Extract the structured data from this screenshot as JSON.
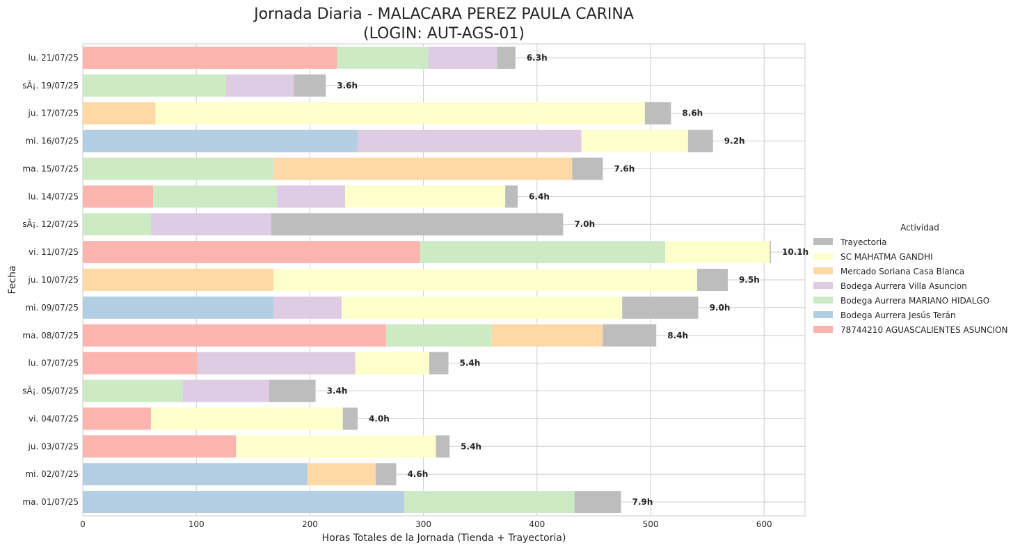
{
  "chart_data": {
    "type": "bar",
    "orientation": "horizontal",
    "stacked": true,
    "title_line1": "Jornada Diaria - MALACARA PEREZ PAULA CARINA",
    "title_line2": "(LOGIN: AUT-AGS-01)",
    "xlabel": "Horas Totales de la Jornada (Tienda + Trayectoria)",
    "ylabel": "Fecha",
    "xlim": [
      0,
      636
    ],
    "xticks": [
      "0",
      "100",
      "200",
      "300",
      "400",
      "500",
      "600"
    ],
    "grid": true,
    "legend_title": "Actividad",
    "legend_position": "right",
    "categories": [
      "lu. 21/07/25",
      "sÃ¡. 19/07/25",
      "ju. 17/07/25",
      "mi. 16/07/25",
      "ma. 15/07/25",
      "lu. 14/07/25",
      "sÃ¡. 12/07/25",
      "vi. 11/07/25",
      "ju. 10/07/25",
      "mi. 09/07/25",
      "ma. 08/07/25",
      "lu. 07/07/25",
      "sÃ¡. 05/07/25",
      "vi. 04/07/25",
      "ju. 03/07/25",
      "mi. 02/07/25",
      "ma. 01/07/25"
    ],
    "series": [
      {
        "name": "78744210 AGUASCALIENTES ASUNCION",
        "color": "#fbb4ae",
        "values": [
          224,
          0,
          0,
          0,
          0,
          62,
          0,
          297,
          0,
          0,
          267,
          101,
          0,
          60,
          135,
          0,
          0
        ]
      },
      {
        "name": "Bodega Aurrera Jesús Terán",
        "color": "#b3cde3",
        "values": [
          0,
          0,
          0,
          242,
          0,
          0,
          0,
          0,
          0,
          168,
          0,
          0,
          0,
          0,
          0,
          198,
          283
        ]
      },
      {
        "name": "Bodega Aurrera MARIANO HIDALGO",
        "color": "#ccebc5",
        "values": [
          80,
          126,
          0,
          0,
          168,
          109,
          60,
          216,
          0,
          0,
          93,
          0,
          88,
          0,
          0,
          0,
          150
        ]
      },
      {
        "name": "Bodega Aurrera Villa Asuncion",
        "color": "#decbe4",
        "values": [
          61,
          60,
          0,
          197,
          0,
          60,
          106,
          0,
          0,
          60,
          0,
          139,
          76,
          0,
          0,
          0,
          0
        ]
      },
      {
        "name": "Mercado Soriana Casa Blanca",
        "color": "#fed9a6",
        "values": [
          0,
          0,
          64,
          0,
          263,
          0,
          0,
          0,
          168,
          0,
          98,
          0,
          0,
          0,
          0,
          60,
          0
        ]
      },
      {
        "name": "SC MAHATMA GANDHI",
        "color": "#ffffcc",
        "values": [
          0,
          0,
          431,
          94,
          0,
          141,
          0,
          92,
          373,
          247,
          0,
          65,
          0,
          169,
          176,
          0,
          0
        ]
      },
      {
        "name": "Trayectoria",
        "color": "#bdbdbd",
        "values": [
          16,
          28,
          23,
          22,
          27,
          11,
          257,
          1,
          27,
          67,
          47,
          17,
          41,
          13,
          12,
          18,
          41
        ]
      }
    ],
    "totals_labels": [
      "6.3h",
      "3.6h",
      "8.6h",
      "9.2h",
      "7.6h",
      "6.4h",
      "7.0h",
      "10.1h",
      "9.5h",
      "9.0h",
      "8.4h",
      "5.4h",
      "3.4h",
      "4.0h",
      "5.4h",
      "4.6h",
      "7.9h"
    ]
  }
}
